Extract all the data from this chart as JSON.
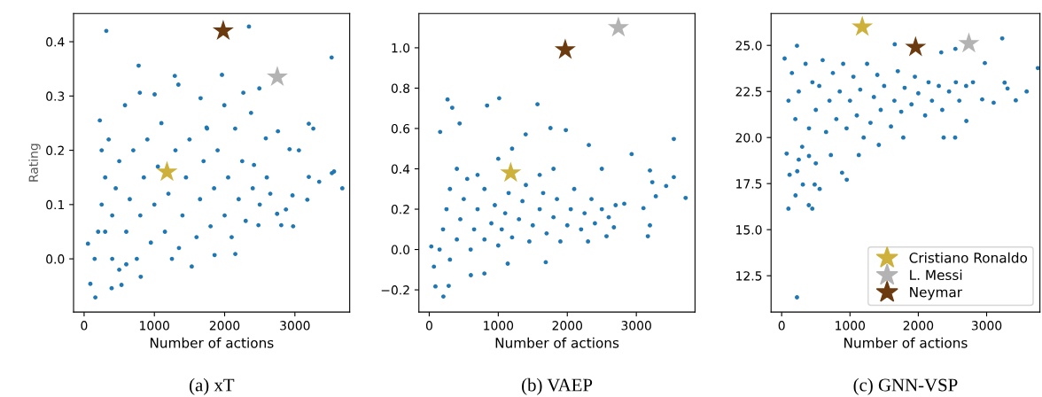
{
  "chart_data": [
    {
      "type": "scatter",
      "title": "(a) xT",
      "xlabel": "Number of actions",
      "ylabel": "Rating",
      "xlim": [
        -150,
        3780
      ],
      "ylim": [
        -0.098,
        0.452
      ],
      "xticks": [
        0,
        1000,
        2000,
        3000
      ],
      "yticks": [
        {
          "value": 0,
          "label": "0.0"
        },
        0.1,
        0.2,
        0.3,
        0.4
      ],
      "legend": false,
      "grid": false,
      "series": [
        {
          "color": "#1f77b4",
          "marker": "circle",
          "x": [
            316,
            2346,
            3523,
            776,
            1962,
            1291,
            1342,
            793,
            1004,
            2266,
            2494,
            3198,
            3262,
            2759,
            3057,
            2924,
            3527,
            3557,
            3675,
            3346,
            3198,
            3177,
            2966,
            2747,
            2873,
            2806,
            2975,
            2481,
            2152,
            1857,
            1532,
            806,
            392,
            160,
            89,
            532,
            55,
            224,
            582,
            1658,
            1996,
            2376,
            1743,
            2586,
            2418,
            150,
            200,
            250,
            300,
            250,
            350,
            400,
            400,
            450,
            500,
            500,
            600,
            650,
            700,
            750,
            800,
            850,
            900,
            950,
            1000,
            1050,
            1100,
            1150,
            1200,
            1300,
            1350,
            1400,
            1450,
            1500,
            1600,
            1650,
            1700,
            1800,
            1850,
            1900,
            2000,
            2050,
            2100,
            2200,
            2250,
            2300,
            2400,
            2500,
            2600,
            2650,
            300,
            600,
            1250,
            1750,
            2150
          ],
          "values": [
            0.42,
            0.428,
            0.371,
            0.356,
            0.339,
            0.337,
            0.321,
            0.306,
            0.303,
            0.306,
            0.314,
            0.249,
            0.24,
            0.235,
            0.2,
            0.202,
            0.158,
            0.161,
            0.13,
            0.142,
            0.151,
            0.109,
            0.117,
            0.083,
            0.091,
            0.062,
            0.06,
            0.062,
            0.009,
            0.007,
            -0.014,
            -0.033,
            -0.054,
            -0.071,
            -0.046,
            -0.048,
            0.028,
            0.255,
            0.283,
            0.296,
            0.283,
            0.269,
            0.242,
            0.222,
            0.173,
            0.0,
            0.05,
            0.1,
            0.15,
            0.2,
            0.22,
            0.0,
            0.08,
            0.13,
            0.18,
            -0.02,
            0.05,
            0.11,
            0.2,
            0.0,
            0.08,
            0.15,
            0.22,
            0.03,
            0.1,
            0.17,
            0.25,
            0.05,
            0.12,
            0.2,
            0.02,
            0.08,
            0.15,
            0.22,
            0.04,
            0.11,
            0.18,
            0.06,
            0.13,
            0.2,
            0.08,
            0.15,
            0.04,
            0.11,
            0.18,
            0.07,
            0.13,
            0.1,
            0.15,
            0.12,
            0.05,
            -0.01,
            0.0,
            0.24,
            0.24
          ]
        },
        {
          "color": "#cdb13b",
          "marker": "star",
          "x": [
            1180
          ],
          "values": [
            0.16
          ]
        },
        {
          "color": "#b3b3b3",
          "marker": "star",
          "x": [
            2750
          ],
          "values": [
            0.335
          ]
        },
        {
          "color": "#6b3a0e",
          "marker": "star",
          "x": [
            1980
          ],
          "values": [
            0.42
          ]
        }
      ]
    },
    {
      "type": "scatter",
      "title": "(b) VAEP",
      "xlabel": "Number of actions",
      "xlim": [
        -150,
        3850
      ],
      "ylim": [
        -0.31,
        1.17
      ],
      "xticks": [
        0,
        1000,
        2000,
        3000
      ],
      "yticks": [
        {
          "value": -0.2,
          "label": "−0.2"
        },
        {
          "value": 0,
          "label": "0.0"
        },
        0.2,
        0.4,
        0.6,
        0.8,
        {
          "value": 1,
          "label": "1.0"
        }
      ],
      "legend": false,
      "grid": false,
      "series": [
        {
          "color": "#1f77b4",
          "marker": "circle",
          "x": [
            265,
            333,
            1013,
            838,
            1568,
            440,
            1756,
            1979,
            158,
            3543,
            1397,
            2312,
            3197,
            2932,
            3231,
            3543,
            3714,
            3432,
            3282,
            3103,
            3197,
            3167,
            2568,
            2675,
            2825,
            1688,
            1137,
            799,
            205,
            90,
            282,
            68,
            30,
            603,
            150,
            200,
            250,
            300,
            300,
            400,
            450,
            500,
            550,
            600,
            650,
            700,
            800,
            800,
            900,
            950,
            1000,
            1050,
            1100,
            1150,
            1200,
            1300,
            1350,
            1400,
            1450,
            1500,
            1600,
            1650,
            1700,
            1800,
            1850,
            1900,
            2000,
            2050,
            2100,
            2200,
            2250,
            2350,
            2400,
            2500,
            2600,
            2700,
            2300,
            1000,
            1200,
            1800,
            2500,
            400,
            700,
            1600
          ],
          "values": [
            0.744,
            0.703,
            0.75,
            0.714,
            0.72,
            0.625,
            0.602,
            0.592,
            0.583,
            0.548,
            0.571,
            0.518,
            0.392,
            0.473,
            0.334,
            0.359,
            0.256,
            0.315,
            0.264,
            0.205,
            0.12,
            0.066,
            0.066,
            0.11,
            0.227,
            -0.063,
            -0.07,
            -0.119,
            -0.233,
            -0.183,
            -0.18,
            -0.085,
            0.015,
            -0.127,
            0.0,
            0.1,
            0.2,
            0.3,
            -0.05,
            0.05,
            0.15,
            0.25,
            0.35,
            0.0,
            0.1,
            0.2,
            0.3,
            0.05,
            0.13,
            0.22,
            0.02,
            0.1,
            0.18,
            0.28,
            0.06,
            0.15,
            0.24,
            0.32,
            0.04,
            0.12,
            0.2,
            0.28,
            0.08,
            0.16,
            0.25,
            0.04,
            0.12,
            0.2,
            0.3,
            0.1,
            0.18,
            0.25,
            0.13,
            0.2,
            0.16,
            0.22,
            0.04,
            0.45,
            0.5,
            0.4,
            0.4,
            0.4,
            0.37,
            0.37
          ]
        },
        {
          "color": "#cdb13b",
          "marker": "star",
          "x": [
            1180
          ],
          "values": [
            0.38
          ]
        },
        {
          "color": "#b3b3b3",
          "marker": "star",
          "x": [
            2740
          ],
          "values": [
            1.1
          ]
        },
        {
          "color": "#6b3a0e",
          "marker": "star",
          "x": [
            1970
          ],
          "values": [
            0.99
          ]
        }
      ]
    },
    {
      "type": "scatter",
      "title": "(c) GNN-VSP",
      "xlabel": "Number of actions",
      "xlim": [
        -155,
        3780
      ],
      "ylim": [
        10.53,
        26.73
      ],
      "xticks": [
        0,
        1000,
        2000,
        3000
      ],
      "yticks": [
        12.5,
        {
          "value": 15,
          "label": "15.0"
        },
        17.5,
        {
          "value": 20,
          "label": "20.0"
        },
        22.5,
        {
          "value": 25,
          "label": "25.0"
        }
      ],
      "legend": "bottom right",
      "grid": false,
      "series": [
        {
          "color": "#1f77b4",
          "marker": "circle",
          "x": [
            224,
            99,
            448,
            397,
            203,
            310,
            483,
            556,
            953,
            884,
            116,
            228,
            43,
            224,
            1655,
            2336,
            2543,
            3228,
            3750,
            2974,
            3586,
            3427,
            3103,
            2935,
            2703,
            2539,
            2371,
            1780,
            1422,
            1129,
            720,
            73,
            3263,
            3306,
            100,
            150,
            200,
            250,
            300,
            350,
            400,
            450,
            500,
            550,
            600,
            650,
            700,
            750,
            800,
            850,
            900,
            950,
            1000,
            1050,
            1100,
            1150,
            1250,
            1300,
            1350,
            1400,
            1450,
            1500,
            1600,
            1650,
            1700,
            1750,
            1800,
            1900,
            1950,
            2000,
            2100,
            2150,
            2200,
            2300,
            2350,
            2450,
            2550,
            2600,
            2700,
            2800,
            250,
            400,
            500,
            1200
          ],
          "values": [
            11.33,
            16.14,
            16.14,
            16.33,
            16.86,
            17.45,
            17.45,
            17.21,
            17.71,
            18.09,
            17.98,
            18.17,
            24.29,
            24.98,
            25.06,
            24.62,
            24.81,
            25.38,
            23.77,
            24.04,
            22.5,
            22.02,
            21.89,
            22.07,
            20.9,
            20.0,
            20.0,
            20.0,
            19.6,
            19.05,
            19.05,
            19.13,
            22.98,
            22.66,
            22.0,
            23.5,
            21.0,
            22.5,
            19.5,
            24.0,
            20.5,
            23.0,
            21.5,
            22.8,
            24.2,
            20.3,
            22.0,
            23.5,
            21.0,
            22.5,
            24.0,
            20.5,
            22.0,
            23.3,
            21.2,
            22.6,
            24.0,
            20.8,
            22.2,
            23.4,
            21.5,
            22.8,
            20.6,
            22.0,
            23.6,
            21.4,
            22.7,
            21.8,
            23.3,
            22.4,
            21.2,
            23.0,
            22.0,
            22.8,
            21.5,
            22.5,
            23.0,
            22.0,
            22.8,
            23.0,
            18.8,
            19.0,
            18.6,
            20.0
          ]
        },
        {
          "name": "Cristiano Ronaldo",
          "color": "#cdb13b",
          "marker": "star",
          "x": [
            1180
          ],
          "values": [
            26.0
          ]
        },
        {
          "name": "L. Messi",
          "color": "#b3b3b3",
          "marker": "star",
          "x": [
            2740
          ],
          "values": [
            25.1
          ]
        },
        {
          "name": "Neymar",
          "color": "#6b3a0e",
          "marker": "star",
          "x": [
            1960
          ],
          "values": [
            24.9
          ]
        }
      ]
    }
  ]
}
